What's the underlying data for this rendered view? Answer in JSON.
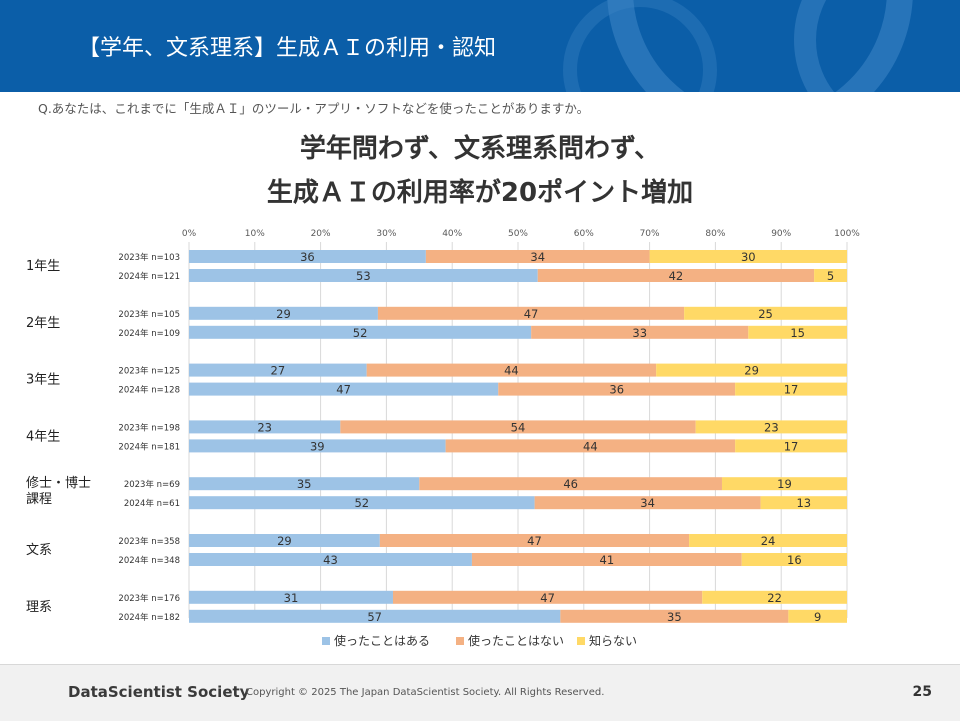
{
  "header": {
    "title": "【学年、文系理系】生成ＡＩの利用・認知"
  },
  "question": "Q.あなたは、これまでに「生成ＡＩ」のツール・アプリ・ソフトなどを使ったことがありますか。",
  "headline": {
    "line1": "学年問わず、文系理系問わず、",
    "line2": "生成ＡＩの利用率が20ポイント増加"
  },
  "chart_data": {
    "type": "bar",
    "orientation": "horizontal-stacked-100",
    "xlim": [
      0,
      100
    ],
    "x_ticks": [
      "0%",
      "10%",
      "20%",
      "30%",
      "40%",
      "50%",
      "60%",
      "70%",
      "80%",
      "90%",
      "100%"
    ],
    "series_names": [
      "使ったことはある",
      "使ったことはない",
      "知らない"
    ],
    "colors": [
      "#9dc3e6",
      "#f4b183",
      "#ffd966"
    ],
    "groups": [
      {
        "label": "1年生",
        "rows": [
          {
            "label": "2023年 n=103",
            "values": [
              36,
              34,
              30
            ]
          },
          {
            "label": "2024年 n=121",
            "values": [
              53,
              42,
              5
            ]
          }
        ]
      },
      {
        "label": "2年生",
        "rows": [
          {
            "label": "2023年 n=105",
            "values": [
              29,
              47,
              25
            ]
          },
          {
            "label": "2024年 n=109",
            "values": [
              52,
              33,
              15
            ]
          }
        ]
      },
      {
        "label": "3年生",
        "rows": [
          {
            "label": "2023年 n=125",
            "values": [
              27,
              44,
              29
            ]
          },
          {
            "label": "2024年 n=128",
            "values": [
              47,
              36,
              17
            ]
          }
        ]
      },
      {
        "label": "4年生",
        "rows": [
          {
            "label": "2023年 n=198",
            "values": [
              23,
              54,
              23
            ]
          },
          {
            "label": "2024年 n=181",
            "values": [
              39,
              44,
              17
            ]
          }
        ]
      },
      {
        "label": "修士・博士課程",
        "rows": [
          {
            "label": "2023年 n=69",
            "values": [
              35,
              46,
              19
            ]
          },
          {
            "label": "2024年 n=61",
            "values": [
              52,
              34,
              13
            ]
          }
        ]
      },
      {
        "label": "文系",
        "rows": [
          {
            "label": "2023年 n=358",
            "values": [
              29,
              47,
              24
            ]
          },
          {
            "label": "2024年 n=348",
            "values": [
              43,
              41,
              16
            ]
          }
        ]
      },
      {
        "label": "理系",
        "rows": [
          {
            "label": "2023年 n=176",
            "values": [
              31,
              47,
              22
            ]
          },
          {
            "label": "2024年 n=182",
            "values": [
              57,
              35,
              9
            ]
          }
        ]
      }
    ]
  },
  "footer": {
    "org": "DataScientist Society",
    "copyright": "Copyright © 2025  The Japan DataScientist Society. All Rights Reserved.",
    "page": "25"
  }
}
